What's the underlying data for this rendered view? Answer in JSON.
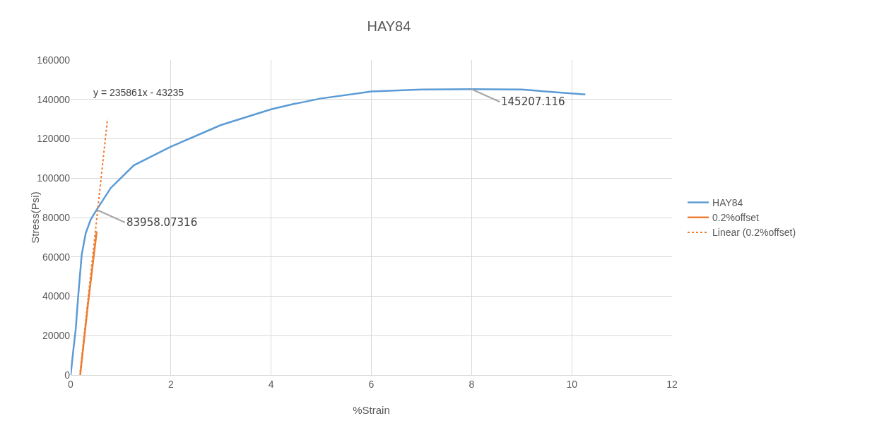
{
  "chart_data": {
    "type": "line",
    "title": "HAY84",
    "xlabel": "%Strain",
    "ylabel": "Stress(Psi)",
    "xlim": [
      0,
      12
    ],
    "xticks": [
      0,
      2,
      4,
      6,
      8,
      10,
      12
    ],
    "ylim": [
      0,
      160000
    ],
    "yticks": [
      0,
      20000,
      40000,
      60000,
      80000,
      100000,
      120000,
      140000,
      160000
    ],
    "grid": true,
    "legend": "right",
    "marker": "none",
    "series": [
      {
        "name": "HAY84",
        "color": "#5b9bd5",
        "line_style": "solid",
        "x": [
          0,
          0.05,
          0.1,
          0.15,
          0.22,
          0.3,
          0.4,
          0.52,
          0.8,
          1.26,
          2.0,
          3.0,
          4.0,
          4.43,
          4.5,
          5.0,
          6.0,
          7.0,
          8.0,
          9.0,
          10.27
        ],
        "values": [
          0,
          12000,
          23000,
          40000,
          61000,
          72000,
          79000,
          84000,
          95000,
          106500,
          116000,
          127000,
          135000,
          137600,
          137900,
          140500,
          144000,
          145000,
          145207,
          145000,
          142500
        ]
      },
      {
        "name": "0.2%offset",
        "color": "#ed7d31",
        "line_style": "solid",
        "x": [
          0.19,
          0.35,
          0.52
        ],
        "values": [
          0,
          37000,
          73000
        ]
      },
      {
        "name": "Linear (0.2%offset)",
        "color": "#ed7d31",
        "line_style": "dotted",
        "x": [
          0.19,
          0.735
        ],
        "values": [
          1600,
          130100
        ]
      }
    ],
    "annotations": [
      "y = 235861x - 43235",
      {
        "text": "83958.07316",
        "x": 0.52,
        "y": 83958
      },
      {
        "text": "145207.116",
        "x": 8,
        "y": 145207
      }
    ]
  }
}
